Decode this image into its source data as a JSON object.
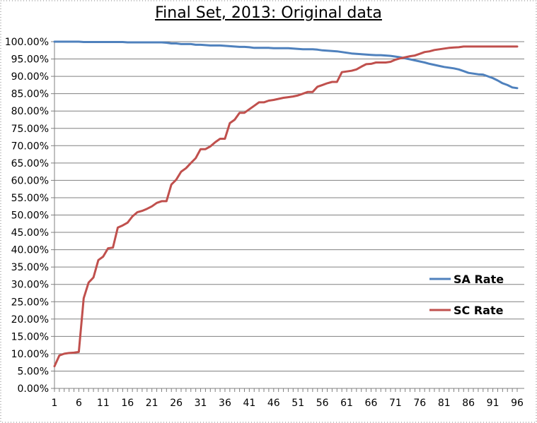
{
  "chart_data": {
    "type": "line",
    "title": "Final Set, 2013: Original data",
    "xlabel": "",
    "ylabel": "",
    "ylim": [
      0,
      1
    ],
    "y_ticks": [
      "0.00%",
      "5.00%",
      "10.00%",
      "15.00%",
      "20.00%",
      "25.00%",
      "30.00%",
      "35.00%",
      "40.00%",
      "45.00%",
      "50.00%",
      "55.00%",
      "60.00%",
      "65.00%",
      "70.00%",
      "75.00%",
      "80.00%",
      "85.00%",
      "90.00%",
      "95.00%",
      "100.00%"
    ],
    "x_ticks": [
      "1",
      "6",
      "11",
      "16",
      "21",
      "26",
      "31",
      "36",
      "41",
      "46",
      "51",
      "56",
      "61",
      "66",
      "71",
      "76",
      "81",
      "86",
      "91",
      "96"
    ],
    "x_range": [
      1,
      96
    ],
    "grid": "horizontal",
    "legend_position": "right",
    "x": [
      1,
      2,
      3,
      4,
      5,
      6,
      7,
      8,
      9,
      10,
      11,
      12,
      13,
      14,
      15,
      16,
      17,
      18,
      19,
      20,
      21,
      22,
      23,
      24,
      25,
      26,
      27,
      28,
      29,
      30,
      31,
      32,
      33,
      34,
      35,
      36,
      37,
      38,
      39,
      40,
      41,
      42,
      43,
      44,
      45,
      46,
      47,
      48,
      49,
      50,
      51,
      52,
      53,
      54,
      55,
      56,
      57,
      58,
      59,
      60,
      61,
      62,
      63,
      64,
      65,
      66,
      67,
      68,
      69,
      70,
      71,
      72,
      73,
      74,
      75,
      76,
      77,
      78,
      79,
      80,
      81,
      82,
      83,
      84,
      85,
      86,
      87,
      88,
      89,
      90,
      91,
      92,
      93,
      94,
      95,
      96
    ],
    "series": [
      {
        "name": "SA Rate",
        "color": "#4f81bd",
        "values": [
          1.0,
          1.0,
          1.0,
          1.0,
          1.0,
          1.0,
          0.999,
          0.999,
          0.999,
          0.999,
          0.999,
          0.999,
          0.999,
          0.999,
          0.999,
          0.998,
          0.998,
          0.998,
          0.998,
          0.998,
          0.998,
          0.998,
          0.998,
          0.997,
          0.995,
          0.995,
          0.993,
          0.993,
          0.993,
          0.991,
          0.991,
          0.99,
          0.989,
          0.989,
          0.989,
          0.988,
          0.987,
          0.986,
          0.985,
          0.985,
          0.984,
          0.982,
          0.982,
          0.982,
          0.982,
          0.981,
          0.981,
          0.981,
          0.981,
          0.98,
          0.979,
          0.978,
          0.978,
          0.978,
          0.977,
          0.975,
          0.974,
          0.973,
          0.972,
          0.97,
          0.968,
          0.966,
          0.965,
          0.964,
          0.963,
          0.962,
          0.961,
          0.961,
          0.96,
          0.959,
          0.957,
          0.955,
          0.952,
          0.949,
          0.946,
          0.943,
          0.94,
          0.936,
          0.933,
          0.93,
          0.927,
          0.925,
          0.923,
          0.92,
          0.915,
          0.91,
          0.908,
          0.906,
          0.905,
          0.9,
          0.895,
          0.888,
          0.88,
          0.875,
          0.868,
          0.866
        ]
      },
      {
        "name": "SC Rate",
        "color": "#c0504d",
        "values": [
          0.064,
          0.095,
          0.1,
          0.102,
          0.103,
          0.105,
          0.26,
          0.305,
          0.32,
          0.37,
          0.38,
          0.404,
          0.406,
          0.464,
          0.47,
          0.478,
          0.496,
          0.508,
          0.512,
          0.518,
          0.525,
          0.535,
          0.54,
          0.54,
          0.588,
          0.602,
          0.625,
          0.635,
          0.65,
          0.664,
          0.69,
          0.69,
          0.698,
          0.71,
          0.72,
          0.72,
          0.765,
          0.775,
          0.795,
          0.795,
          0.805,
          0.815,
          0.825,
          0.825,
          0.83,
          0.832,
          0.835,
          0.838,
          0.84,
          0.842,
          0.845,
          0.85,
          0.855,
          0.855,
          0.87,
          0.875,
          0.88,
          0.884,
          0.884,
          0.912,
          0.914,
          0.916,
          0.92,
          0.928,
          0.935,
          0.936,
          0.94,
          0.94,
          0.94,
          0.942,
          0.948,
          0.952,
          0.955,
          0.958,
          0.96,
          0.965,
          0.97,
          0.972,
          0.976,
          0.978,
          0.98,
          0.982,
          0.983,
          0.984,
          0.986,
          0.986,
          0.986,
          0.986,
          0.986,
          0.986,
          0.986,
          0.986,
          0.986,
          0.986,
          0.986,
          0.986
        ]
      }
    ]
  }
}
